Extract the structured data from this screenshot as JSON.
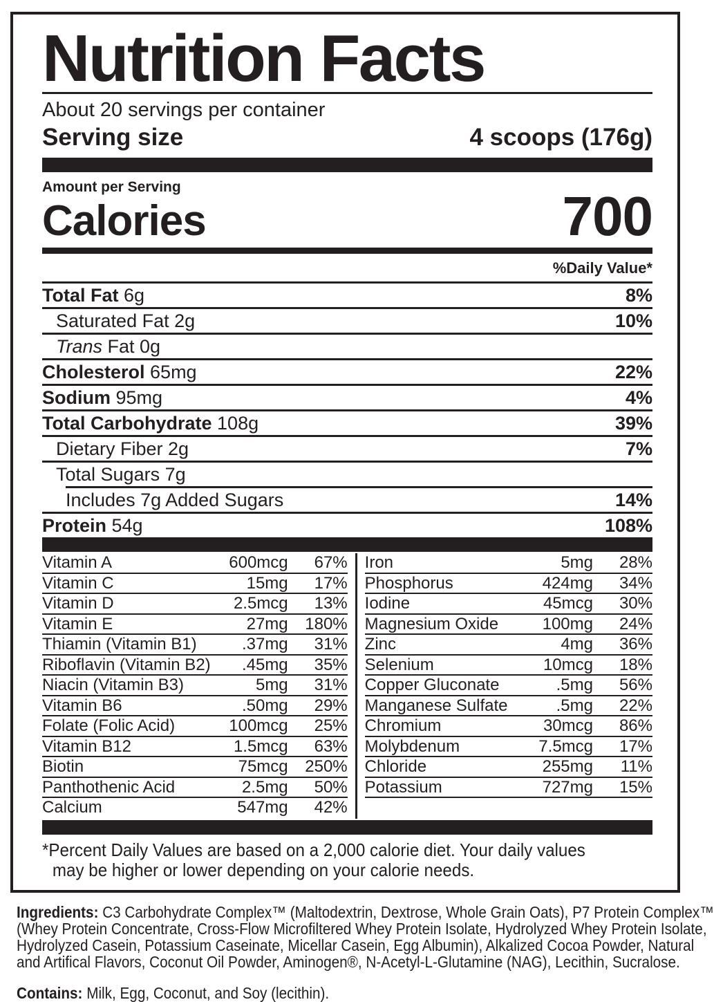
{
  "colors": {
    "ink": "#231f20",
    "background": "#ffffff"
  },
  "label": {
    "title": "Nutrition Facts",
    "servings_per_container": "About 20 servings per container",
    "serving_size": {
      "label": "Serving size",
      "value": "4 scoops (176g)"
    },
    "amount_per_serving": "Amount per Serving",
    "calories": {
      "label": "Calories",
      "value": "700"
    },
    "daily_value_header": "%Daily Value*",
    "nutrients": [
      {
        "bold": "Total Fat",
        "rest": " 6g",
        "dv": "8%",
        "indent": 0
      },
      {
        "rest": "Saturated Fat 2g",
        "dv": "10%",
        "indent": 1
      },
      {
        "italic": "Trans",
        "rest": " Fat 0g",
        "dv": "",
        "indent": 1
      },
      {
        "bold": "Cholesterol",
        "rest": " 65mg",
        "dv": "22%",
        "indent": 0
      },
      {
        "bold": "Sodium",
        "rest": " 95mg",
        "dv": "4%",
        "indent": 0
      },
      {
        "bold": "Total Carbohydrate",
        "rest": " 108g",
        "dv": "39%",
        "indent": 0
      },
      {
        "rest": "Dietary Fiber 2g",
        "dv": "7%",
        "indent": 1
      },
      {
        "rest": "Total Sugars 7g",
        "dv": "",
        "indent": 1
      },
      {
        "rest": "Includes 7g Added Sugars",
        "dv": "14%",
        "indent": 2,
        "separator_indented": true
      },
      {
        "bold": "Protein",
        "rest": " 54g",
        "dv": "108%",
        "indent": 0
      }
    ],
    "micronutrients": {
      "left": [
        {
          "name": "Vitamin A",
          "amount": "600mcg",
          "dv": "67%"
        },
        {
          "name": "Vitamin C",
          "amount": "15mg",
          "dv": "17%"
        },
        {
          "name": "Vitamin D",
          "amount": "2.5mcg",
          "dv": "13%"
        },
        {
          "name": "Vitamin E",
          "amount": "27mg",
          "dv": "180%"
        },
        {
          "name": "Thiamin (Vitamin B1)",
          "amount": ".37mg",
          "dv": "31%"
        },
        {
          "name": "Riboflavin (Vitamin B2)",
          "amount": ".45mg",
          "dv": "35%"
        },
        {
          "name": "Niacin (Vitamin B3)",
          "amount": "5mg",
          "dv": "31%"
        },
        {
          "name": "Vitamin B6",
          "amount": ".50mg",
          "dv": "29%"
        },
        {
          "name": "Folate (Folic Acid)",
          "amount": "100mcg",
          "dv": "25%"
        },
        {
          "name": "Vitamin B12",
          "amount": "1.5mcg",
          "dv": "63%"
        },
        {
          "name": "Biotin",
          "amount": "75mcg",
          "dv": "250%"
        },
        {
          "name": "Panthothenic Acid",
          "amount": "2.5mg",
          "dv": "50%"
        },
        {
          "name": "Calcium",
          "amount": "547mg",
          "dv": "42%"
        }
      ],
      "right": [
        {
          "name": "Iron",
          "amount": "5mg",
          "dv": "28%"
        },
        {
          "name": "Phosphorus",
          "amount": "424mg",
          "dv": "34%"
        },
        {
          "name": "Iodine",
          "amount": "45mcg",
          "dv": "30%"
        },
        {
          "name": "Magnesium Oxide",
          "amount": "100mg",
          "dv": "24%"
        },
        {
          "name": "Zinc",
          "amount": "4mg",
          "dv": "36%"
        },
        {
          "name": "Selenium",
          "amount": "10mcg",
          "dv": "18%"
        },
        {
          "name": "Copper Gluconate",
          "amount": ".5mg",
          "dv": "56%"
        },
        {
          "name": "Manganese Sulfate",
          "amount": ".5mg",
          "dv": "22%"
        },
        {
          "name": "Chromium",
          "amount": "30mcg",
          "dv": "86%"
        },
        {
          "name": "Molybdenum",
          "amount": "7.5mcg",
          "dv": "17%"
        },
        {
          "name": "Chloride",
          "amount": "255mg",
          "dv": "11%"
        },
        {
          "name": "Potassium",
          "amount": "727mg",
          "dv": "15%"
        }
      ]
    },
    "footnote_lines": [
      "*Percent Daily Values are based on a 2,000 calorie diet. Your daily values",
      "may be higher or lower depending on your calorie needs."
    ]
  },
  "ingredients": {
    "lines": [
      {
        "bold": "Ingredients:",
        "text": " C3 Carbohydrate Complex™ (Maltodextrin, Dextrose, Whole Grain Oats), P7 Protein Complex™"
      },
      {
        "text": "(Whey Protein Concentrate, Cross-Flow Microfiltered Whey Protein Isolate, Hydrolyzed Whey Protein Isolate,"
      },
      {
        "text": "Hydrolyzed Casein, Potassium Caseinate, Micellar Casein, Egg Albumin), Alkalized Cocoa Powder, Natural"
      },
      {
        "text": "and Artifical Flavors, Coconut Oil Powder, Aminogen®, N-Acetyl-L-Glutamine (NAG), Lecithin, Sucralose."
      }
    ],
    "contains": {
      "bold": "Contains:",
      "text": " Milk, Egg, Coconut, and Soy (lecithin)."
    }
  }
}
